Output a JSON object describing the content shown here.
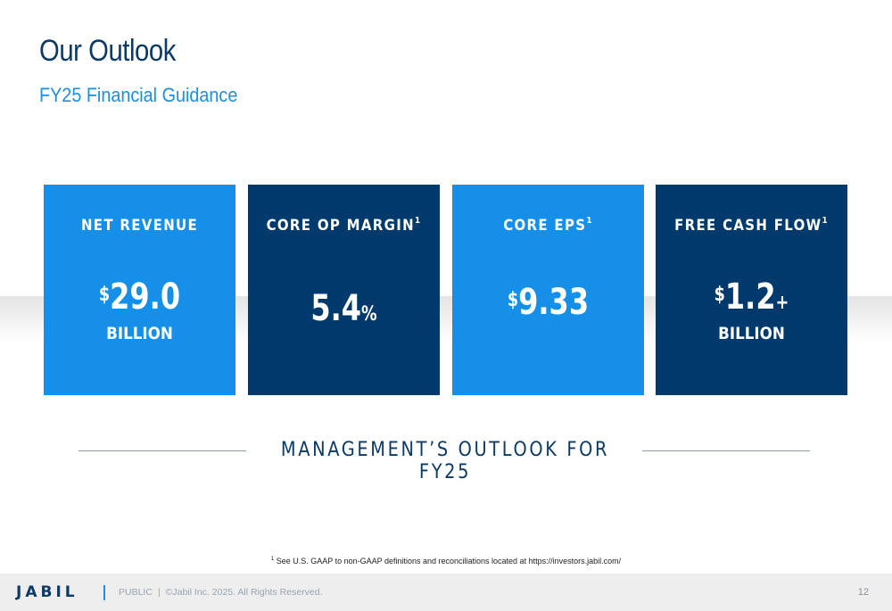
{
  "header": {
    "title": "Our Outlook",
    "subtitle": "FY25 Financial Guidance"
  },
  "cards": [
    {
      "label": "NET REVENUE",
      "footnote": "",
      "currency": "$",
      "value": "29.0",
      "suffix": "",
      "unit": "BILLION",
      "color": "#168fe8"
    },
    {
      "label": "CORE OP MARGIN",
      "footnote": "1",
      "currency": "",
      "value": "5.4",
      "suffix": "%",
      "unit": "",
      "color": "#003a6c"
    },
    {
      "label": "CORE EPS",
      "footnote": "1",
      "currency": "$",
      "value": "9.33",
      "suffix": "",
      "unit": "",
      "color": "#168fe8"
    },
    {
      "label": "FREE CASH FLOW",
      "footnote": "1",
      "currency": "$",
      "value": "1.2",
      "suffix": "+",
      "unit": "BILLION",
      "color": "#003a6c"
    }
  ],
  "outlook_caption": "MANAGEMENT’S OUTLOOK FOR FY25",
  "footnote": {
    "marker": "1",
    "text": "See U.S. GAAP to non-GAAP definitions and reconciliations located at https://investors.jabil.com/"
  },
  "footer": {
    "logo": "JABIL",
    "classification": "PUBLIC",
    "copyright": "©Jabil Inc. 2025. All Rights Reserved.",
    "page_number": "12"
  }
}
